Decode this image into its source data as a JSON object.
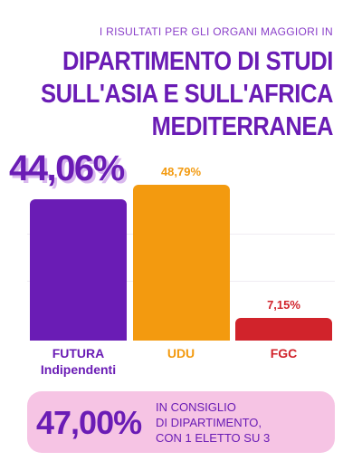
{
  "header": {
    "kicker": "I RISULTATI PER GLI ORGANI MAGGIORI IN",
    "title_lines": [
      "DIPARTIMENTO DI STUDI",
      "SULL'ASIA E SULL'AFRICA",
      "MEDITERRANEA"
    ]
  },
  "chart_data": {
    "type": "bar",
    "categories": [
      "FUTURA Indipendenti",
      "UDU",
      "FGC"
    ],
    "values": [
      44.06,
      48.79,
      7.15
    ],
    "value_labels": [
      "44,06%",
      "48,79%",
      "7,15%"
    ],
    "colors": [
      "#6a1cb5",
      "#f39a0f",
      "#d1232b"
    ]
  },
  "footer": {
    "stat": "47,00%",
    "lines": [
      "IN CONSIGLIO",
      "DI DIPARTIMENTO,",
      "CON 1 ELETTO SU 3"
    ]
  }
}
